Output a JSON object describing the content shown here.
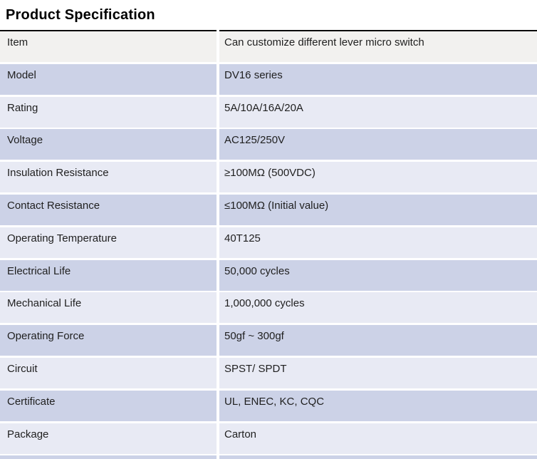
{
  "title": "Product Specification",
  "colors": {
    "row_dark": "#ccd2e7",
    "row_light": "#e8eaf4",
    "row_gray": "#f2f1ef",
    "top_border": "#0a0a0a",
    "text": "#1f1f1f"
  },
  "table": {
    "rows": [
      {
        "label": "Item",
        "value": "Can customize different lever micro switch",
        "tone": "gray"
      },
      {
        "label": "Model",
        "value": "DV16 series",
        "tone": "dark"
      },
      {
        "label": "Rating",
        "value": "5A/10A/16A/20A",
        "tone": "light"
      },
      {
        "label": "Voltage",
        "value": "AC125/250V",
        "tone": "dark"
      },
      {
        "label": "Insulation Resistance",
        "value": "≥100MΩ (500VDC)",
        "tone": "light"
      },
      {
        "label": "Contact Resistance",
        "value": "≤100MΩ (Initial value)",
        "tone": "dark"
      },
      {
        "label": "Operating Temperature",
        "value": "40T125",
        "tone": "light"
      },
      {
        "label": "Electrical Life",
        "value": "50,000 cycles",
        "tone": "dark"
      },
      {
        "label": "Mechanical Life",
        "value": "1,000,000 cycles",
        "tone": "light"
      },
      {
        "label": "Operating Force",
        "value": "50gf ~ 300gf",
        "tone": "dark"
      },
      {
        "label": "Circuit",
        "value": "SPST/ SPDT",
        "tone": "light"
      },
      {
        "label": "Certificate",
        "value": "UL, ENEC, KC, CQC",
        "tone": "dark"
      },
      {
        "label": "Package",
        "value": "Carton",
        "tone": "light"
      }
    ]
  }
}
